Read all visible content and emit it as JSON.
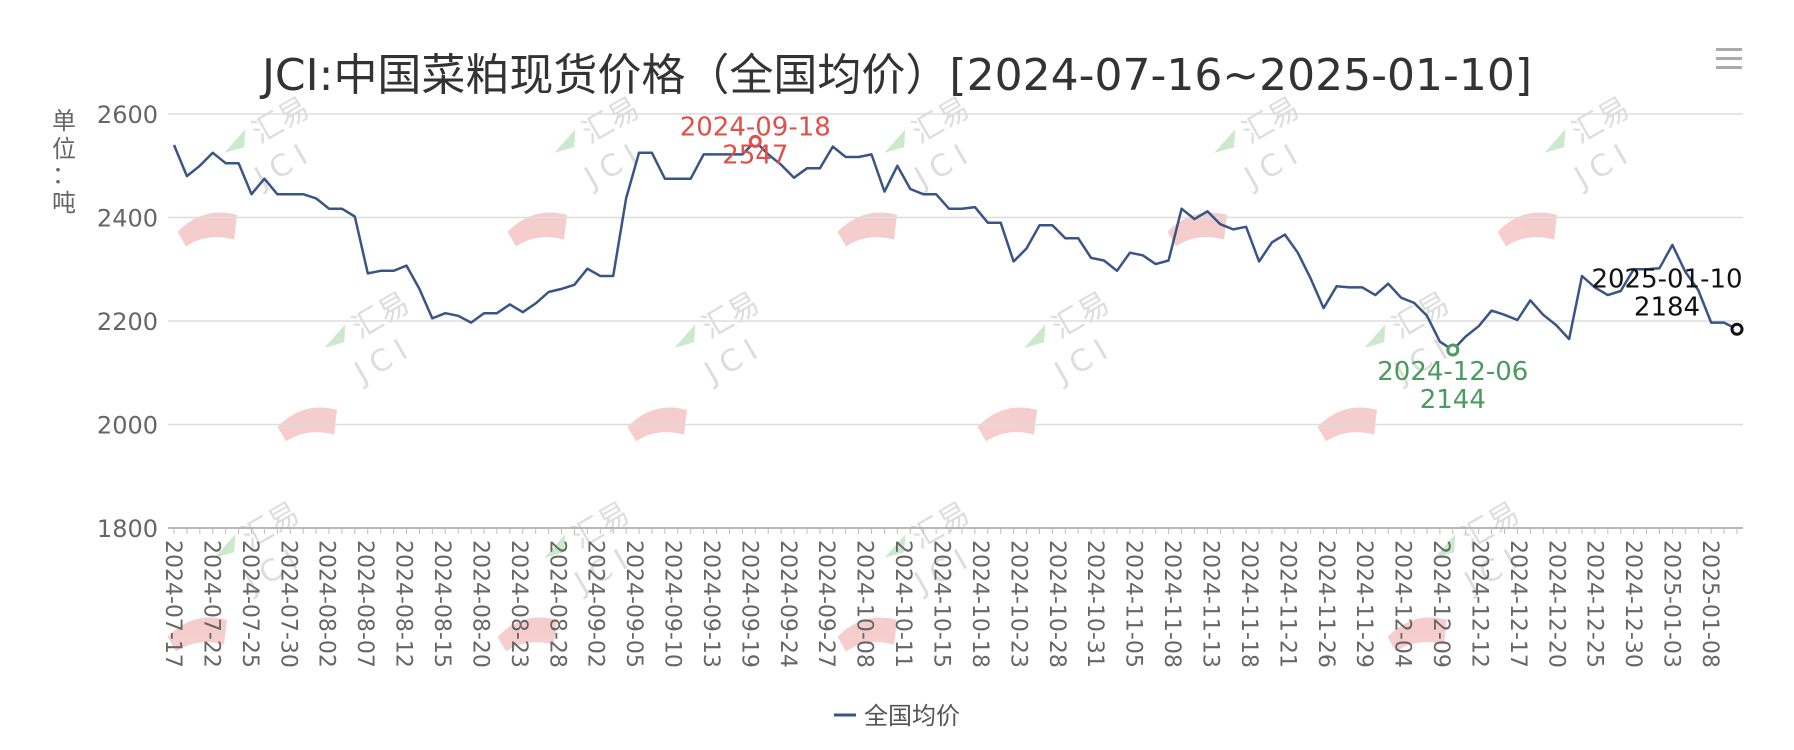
{
  "chart_data": {
    "type": "line",
    "title": "JCI:中国菜粕现货价格（全国均价）[2024-07-16~2025-01-10]",
    "ylabel_chars": [
      "单",
      "位",
      "：",
      "吨"
    ],
    "ylim": [
      1800,
      2600
    ],
    "yticks": [
      1800,
      2000,
      2200,
      2400,
      2600
    ],
    "grid": true,
    "legend_position": "bottom",
    "watermark": "汇易 JCI",
    "x_tick_labels": [
      "2024-07-17",
      "2024-07-22",
      "2024-07-25",
      "2024-07-30",
      "2024-08-02",
      "2024-08-07",
      "2024-08-12",
      "2024-08-15",
      "2024-08-20",
      "2024-08-23",
      "2024-08-28",
      "2024-09-02",
      "2024-09-05",
      "2024-09-10",
      "2024-09-13",
      "2024-09-19",
      "2024-09-24",
      "2024-09-27",
      "2024-10-08",
      "2024-10-11",
      "2024-10-15",
      "2024-10-18",
      "2024-10-23",
      "2024-10-28",
      "2024-10-31",
      "2024-11-05",
      "2024-11-08",
      "2024-11-13",
      "2024-11-18",
      "2024-11-21",
      "2024-11-26",
      "2024-11-29",
      "2024-12-04",
      "2024-12-09",
      "2024-12-12",
      "2024-12-17",
      "2024-12-20",
      "2024-12-25",
      "2024-12-30",
      "2025-01-03",
      "2025-01-08"
    ],
    "series": [
      {
        "name": "全国均价",
        "color": "#3b5486",
        "values": [
          2540,
          2480,
          2500,
          2525,
          2505,
          2505,
          2445,
          2475,
          2445,
          2445,
          2445,
          2437,
          2417,
          2417,
          2402,
          2292,
          2297,
          2297,
          2307,
          2262,
          2205,
          2215,
          2210,
          2197,
          2215,
          2215,
          2232,
          2217,
          2234,
          2256,
          2262,
          2270,
          2301,
          2287,
          2287,
          2437,
          2525,
          2525,
          2475,
          2475,
          2475,
          2522,
          2522,
          2522,
          2522,
          2547,
          2522,
          2502,
          2477,
          2495,
          2495,
          2537,
          2517,
          2517,
          2522,
          2450,
          2500,
          2455,
          2445,
          2445,
          2417,
          2417,
          2420,
          2390,
          2390,
          2315,
          2340,
          2385,
          2385,
          2360,
          2360,
          2322,
          2317,
          2297,
          2332,
          2327,
          2310,
          2317,
          2417,
          2397,
          2412,
          2387,
          2377,
          2382,
          2315,
          2352,
          2367,
          2332,
          2282,
          2225,
          2267,
          2265,
          2265,
          2250,
          2272,
          2245,
          2235,
          2210,
          2160,
          2144,
          2170,
          2190,
          2220,
          2212,
          2202,
          2240,
          2212,
          2192,
          2165,
          2287,
          2265,
          2250,
          2258,
          2300,
          2300,
          2302,
          2347,
          2295,
          2260,
          2197,
          2197,
          2184
        ]
      }
    ],
    "annotations": [
      {
        "date": "2024-09-18",
        "label": "2547",
        "value": 2547,
        "index": 45,
        "color": "#e0504a"
      },
      {
        "date": "2024-12-06",
        "label": "2144",
        "value": 2144,
        "index": 99,
        "color": "#4b9a5e"
      },
      {
        "date": "2025-01-10",
        "label": "2184",
        "value": 2184,
        "index": 121,
        "color": "#111111"
      }
    ]
  }
}
